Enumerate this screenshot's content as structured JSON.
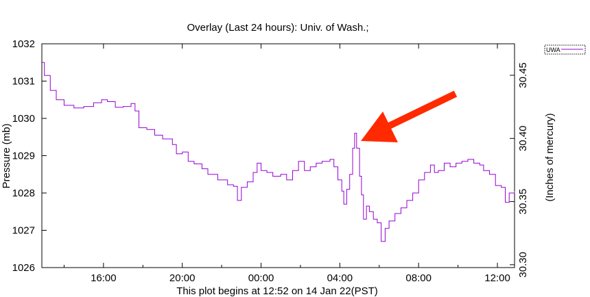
{
  "chart_data": {
    "type": "line",
    "title": "Overlay (Last 24 hours): Univ. of Wash.;",
    "xlabel": "This plot begins at 12:52 on 14 Jan 22(PST)",
    "ylabel": "Pressure (mb)",
    "y2label": "(Inches of mercury)",
    "xlim": [
      12.87,
      36.87
    ],
    "ylim": [
      1026,
      1032
    ],
    "x_ticks": [
      {
        "x": 16,
        "label": "16:00"
      },
      {
        "x": 20,
        "label": "20:00"
      },
      {
        "x": 24,
        "label": "00:00"
      },
      {
        "x": 28,
        "label": "04:00"
      },
      {
        "x": 32,
        "label": "08:00"
      },
      {
        "x": 36,
        "label": "12:00"
      }
    ],
    "y_ticks": [
      1026,
      1027,
      1028,
      1029,
      1030,
      1031,
      1032
    ],
    "y2_ticks": [
      {
        "value": 30.3,
        "label": "30.30"
      },
      {
        "value": 30.35,
        "label": "30.35"
      },
      {
        "value": 30.4,
        "label": "30.40"
      },
      {
        "value": 30.45,
        "label": "30.45"
      }
    ],
    "legend_position": "top-right outside",
    "series": [
      {
        "name": "UWA",
        "color": "#9400d3",
        "points": [
          [
            12.87,
            1031.5
          ],
          [
            13.0,
            1031.15
          ],
          [
            13.3,
            1030.75
          ],
          [
            13.6,
            1030.5
          ],
          [
            14.0,
            1030.35
          ],
          [
            14.5,
            1030.28
          ],
          [
            15.0,
            1030.32
          ],
          [
            15.5,
            1030.42
          ],
          [
            15.9,
            1030.5
          ],
          [
            16.2,
            1030.45
          ],
          [
            16.6,
            1030.3
          ],
          [
            17.0,
            1030.32
          ],
          [
            17.4,
            1030.4
          ],
          [
            17.6,
            1030.2
          ],
          [
            17.8,
            1029.75
          ],
          [
            18.2,
            1029.7
          ],
          [
            18.6,
            1029.55
          ],
          [
            19.0,
            1029.45
          ],
          [
            19.5,
            1029.3
          ],
          [
            19.7,
            1029.05
          ],
          [
            20.0,
            1029.1
          ],
          [
            20.3,
            1028.85
          ],
          [
            20.6,
            1028.78
          ],
          [
            21.0,
            1028.65
          ],
          [
            21.3,
            1028.5
          ],
          [
            21.8,
            1028.35
          ],
          [
            22.3,
            1028.22
          ],
          [
            22.6,
            1028.18
          ],
          [
            22.8,
            1027.8
          ],
          [
            23.0,
            1028.15
          ],
          [
            23.3,
            1028.3
          ],
          [
            23.6,
            1028.55
          ],
          [
            23.8,
            1028.8
          ],
          [
            24.0,
            1028.6
          ],
          [
            24.3,
            1028.55
          ],
          [
            24.6,
            1028.45
          ],
          [
            25.0,
            1028.5
          ],
          [
            25.3,
            1028.35
          ],
          [
            25.6,
            1028.6
          ],
          [
            25.9,
            1028.85
          ],
          [
            26.2,
            1028.6
          ],
          [
            26.5,
            1028.7
          ],
          [
            26.8,
            1028.8
          ],
          [
            27.1,
            1028.85
          ],
          [
            27.5,
            1028.9
          ],
          [
            27.7,
            1028.7
          ],
          [
            27.9,
            1028.35
          ],
          [
            28.1,
            1028.05
          ],
          [
            28.2,
            1027.7
          ],
          [
            28.35,
            1028.1
          ],
          [
            28.5,
            1028.5
          ],
          [
            28.65,
            1029.2
          ],
          [
            28.75,
            1029.6
          ],
          [
            28.85,
            1029.2
          ],
          [
            29.0,
            1028.45
          ],
          [
            29.1,
            1027.95
          ],
          [
            29.2,
            1027.3
          ],
          [
            29.35,
            1027.65
          ],
          [
            29.5,
            1027.5
          ],
          [
            29.7,
            1027.3
          ],
          [
            29.9,
            1027.2
          ],
          [
            30.1,
            1026.7
          ],
          [
            30.3,
            1027.05
          ],
          [
            30.5,
            1027.25
          ],
          [
            30.8,
            1027.45
          ],
          [
            31.1,
            1027.6
          ],
          [
            31.4,
            1027.8
          ],
          [
            31.7,
            1028.0
          ],
          [
            32.0,
            1028.35
          ],
          [
            32.3,
            1028.55
          ],
          [
            32.6,
            1028.75
          ],
          [
            32.8,
            1028.55
          ],
          [
            33.0,
            1028.6
          ],
          [
            33.3,
            1028.8
          ],
          [
            33.6,
            1028.7
          ],
          [
            33.9,
            1028.8
          ],
          [
            34.2,
            1028.85
          ],
          [
            34.5,
            1028.9
          ],
          [
            34.8,
            1028.8
          ],
          [
            35.1,
            1028.75
          ],
          [
            35.3,
            1028.6
          ],
          [
            35.6,
            1028.5
          ],
          [
            35.9,
            1028.2
          ],
          [
            36.2,
            1028.15
          ],
          [
            36.4,
            1027.75
          ],
          [
            36.6,
            1028.0
          ],
          [
            36.87,
            1028.05
          ]
        ]
      }
    ]
  },
  "annotation": {
    "type": "arrow",
    "color": "#ff2a00"
  }
}
